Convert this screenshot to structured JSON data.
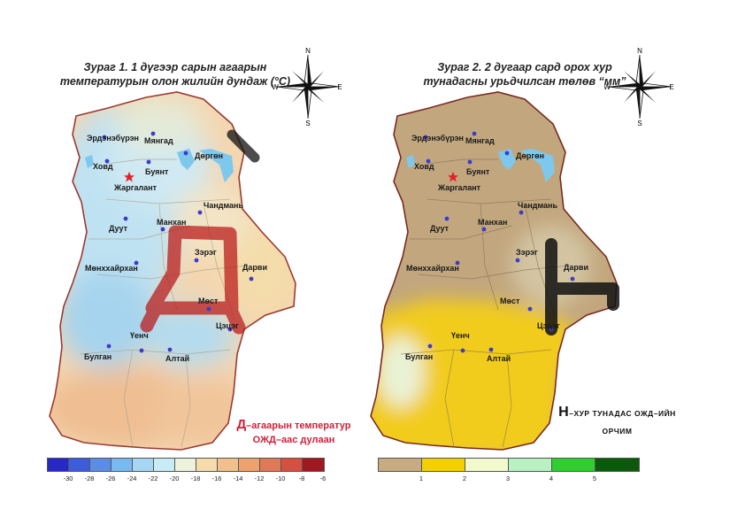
{
  "left_map": {
    "title_line1": "Зураг 1. 1 дүгээр сарын агаарын",
    "title_line2": "температурын олон жилийн дундаж (°C)",
    "legend": {
      "colors": [
        "#2828c8",
        "#3c5cdc",
        "#5a8ee6",
        "#7ab8f0",
        "#a6d6f4",
        "#c8ecf6",
        "#ecf2dc",
        "#f6dcaa",
        "#f2c08c",
        "#eea270",
        "#e07a56",
        "#d65040",
        "#a01820"
      ],
      "tick_labels": [
        "-30",
        "-28",
        "-26",
        "-24",
        "-22",
        "-20",
        "-18",
        "-16",
        "-14",
        "-12",
        "-10",
        "-8",
        "-6"
      ]
    },
    "note_symbol": "Д",
    "note_line1": "–агаарын температур",
    "note_line2": "ОЖД–аас дулаан"
  },
  "right_map": {
    "title_line1": "Зураг 2.  2 дугаар сард орох хур",
    "title_line2": "тунадасны урьдчилсан төлөв “мм”",
    "legend": {
      "colors": [
        "#c7ab81",
        "#f4d000",
        "#f2f9cc",
        "#b8f2c2",
        "#2ecf2e",
        "#0a5a0a"
      ],
      "tick_labels": [
        "1",
        "2",
        "3",
        "4",
        "5"
      ]
    },
    "note_symbol": "Н",
    "note_line1": "–ХУР ТУНАДАС ОЖД–ИЙН",
    "note_line2": "ОРЧИМ"
  },
  "compass": {
    "north": "N",
    "south": "S",
    "east": "E",
    "west": "W"
  },
  "places": {
    "erdenebueren": "Эрдэнэбүрэн",
    "myangad": "Мянгад",
    "khovd": "Ховд",
    "buyant": "Буянт",
    "dorgon": "Дөргөн",
    "jargalant": "Жаргалант",
    "chandmani": "Чандмань",
    "duut": "Дуут",
    "mankhan": "Манхан",
    "zereg": "Зэрэг",
    "darvi": "Дарви",
    "munkhkhairkhan": "Мөнххайрхан",
    "must": "Мөст",
    "tsetseg": "Цэцэг",
    "uyench": "Үенч",
    "bulgan": "Булган",
    "altai": "Алтай"
  }
}
